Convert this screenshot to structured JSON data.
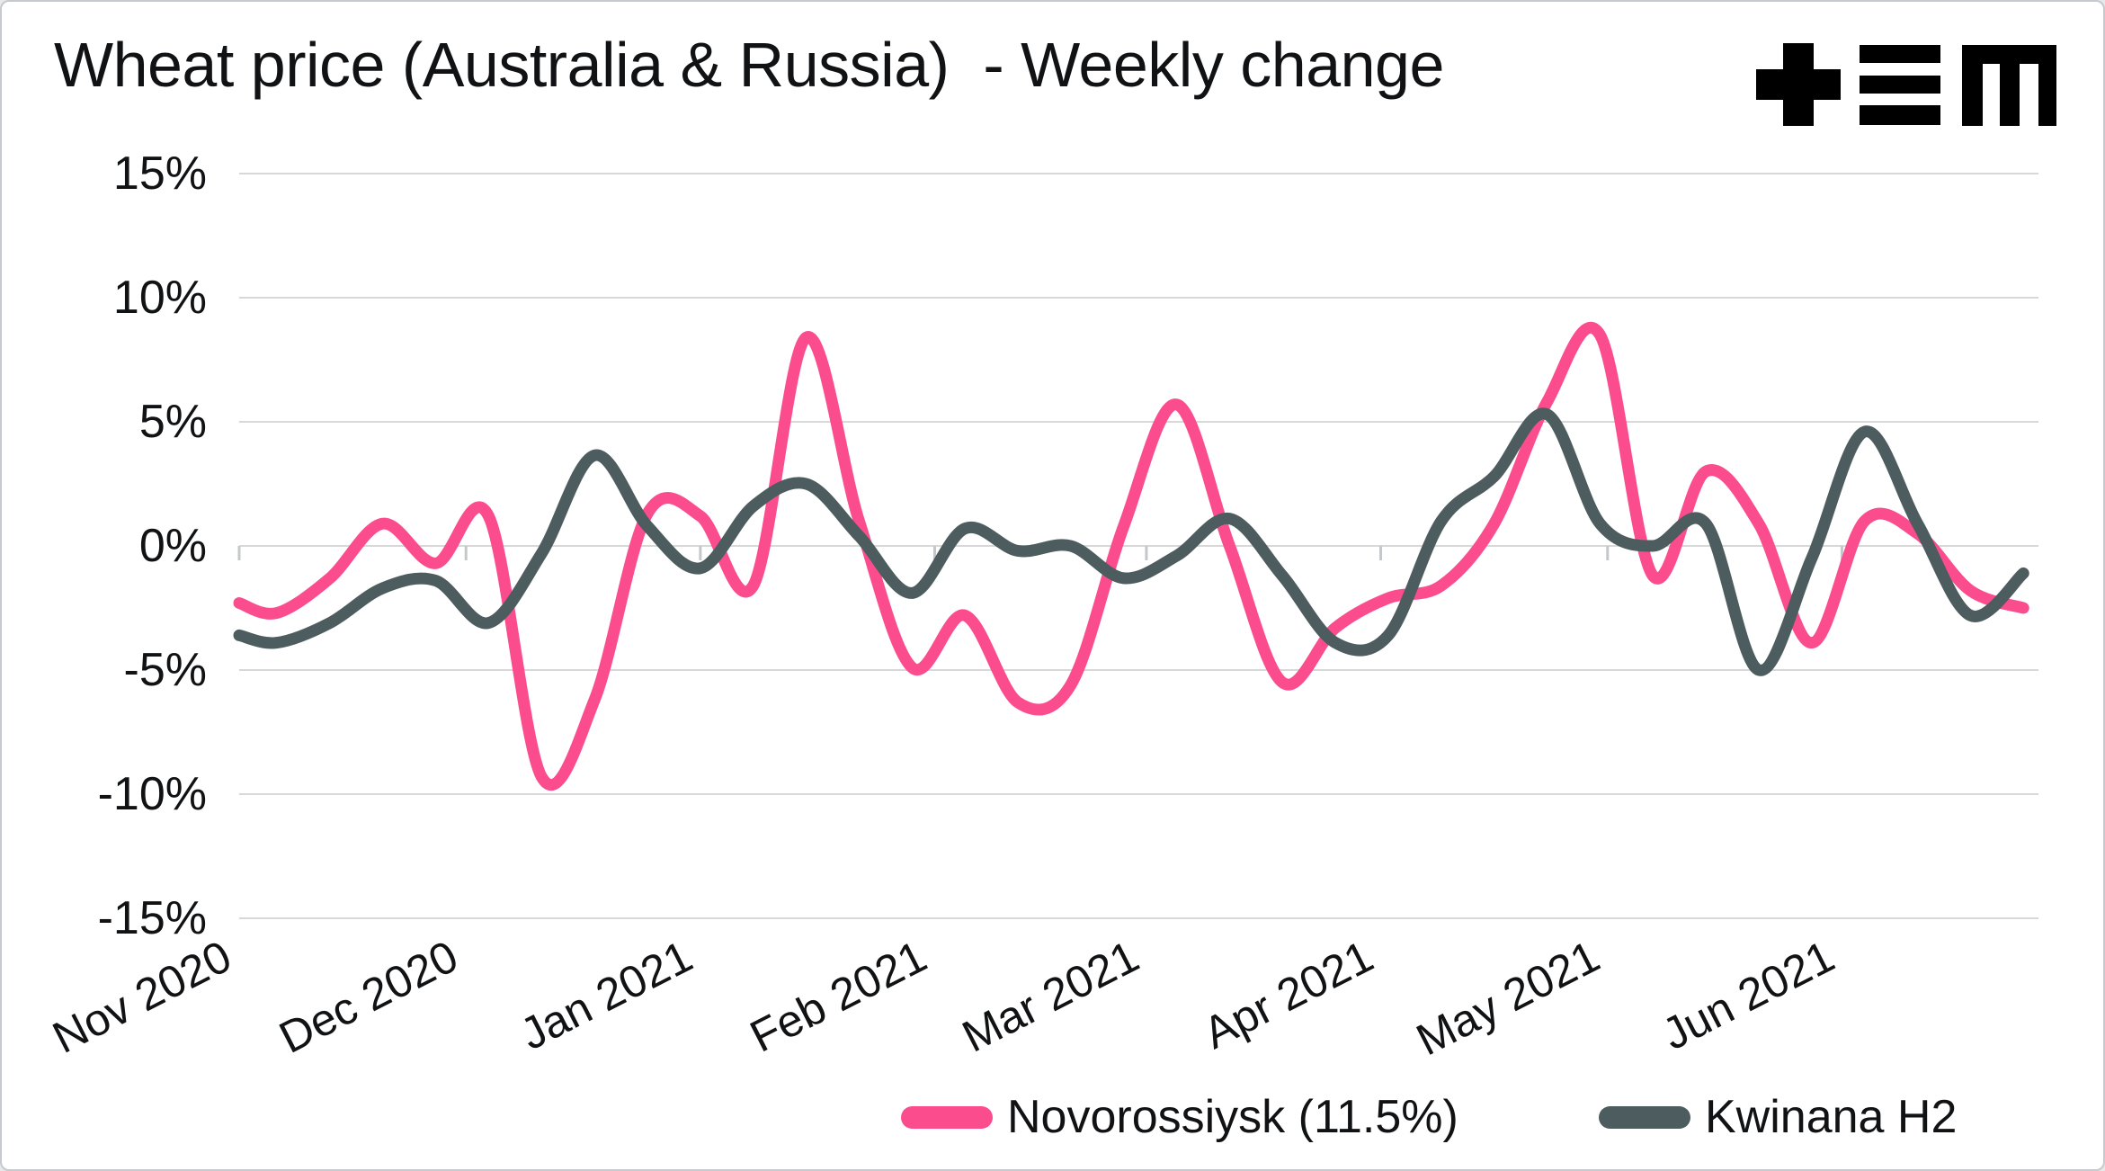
{
  "title": "Wheat price (Australia & Russia)  - Weekly change",
  "logo": {
    "name": "tem-logo",
    "color": "#1a1a1a"
  },
  "colors": {
    "novorossiysk": "#fb4d8e",
    "kwinana": "#4d5c5e",
    "grid": "#d8d8d8",
    "tick": "#c4c8ca",
    "text": "#111214",
    "background": "#ffffff"
  },
  "y_axis": {
    "tick_labels": [
      "15%",
      "10%",
      "5%",
      "0%",
      "-5%",
      "-10%",
      "-15%"
    ],
    "tick_values": [
      15,
      10,
      5,
      0,
      -5,
      -10,
      -15
    ]
  },
  "x_axis": {
    "months": [
      {
        "label": "Nov 2020",
        "date": "2020-11-01"
      },
      {
        "label": "Dec 2020",
        "date": "2020-12-01"
      },
      {
        "label": "Jan 2021",
        "date": "2021-01-01"
      },
      {
        "label": "Feb 2021",
        "date": "2021-02-01"
      },
      {
        "label": "Mar 2021",
        "date": "2021-03-01"
      },
      {
        "label": "Apr 2021",
        "date": "2021-04-01"
      },
      {
        "label": "May 2021",
        "date": "2021-05-01"
      },
      {
        "label": "Jun 2021",
        "date": "2021-06-01"
      }
    ]
  },
  "legend": [
    {
      "label": "Novorossiysk (11.5%)",
      "series": "novorossiysk"
    },
    {
      "label": "Kwinana H2",
      "series": "kwinana"
    }
  ],
  "chart_data": {
    "type": "line",
    "x_unit": "weekly",
    "x_range": [
      "2020-11-01",
      "2021-06-27"
    ],
    "ylim": [
      -15,
      15
    ],
    "yticks": [
      15,
      10,
      5,
      0,
      -5,
      -10,
      -15
    ],
    "grid": "horizontal",
    "legend_position": "bottom",
    "x": [
      "2020-11-01",
      "2020-11-06",
      "2020-11-13",
      "2020-11-20",
      "2020-11-27",
      "2020-12-04",
      "2020-12-11",
      "2020-12-18",
      "2020-12-25",
      "2021-01-01",
      "2021-01-08",
      "2021-01-15",
      "2021-01-22",
      "2021-01-29",
      "2021-02-05",
      "2021-02-12",
      "2021-02-19",
      "2021-02-26",
      "2021-03-05",
      "2021-03-12",
      "2021-03-19",
      "2021-03-26",
      "2021-04-02",
      "2021-04-09",
      "2021-04-16",
      "2021-04-23",
      "2021-04-30",
      "2021-05-07",
      "2021-05-14",
      "2021-05-21",
      "2021-05-28",
      "2021-06-04",
      "2021-06-11",
      "2021-06-18",
      "2021-06-25"
    ],
    "series": [
      {
        "name": "Novorossiysk (11.5%)",
        "key": "novorossiysk",
        "color": "#fb4d8e",
        "values": [
          -2.3,
          -2.7,
          -1.3,
          0.9,
          -0.7,
          1.2,
          -9.3,
          -6.2,
          1.3,
          1.2,
          -1.6,
          8.4,
          1.0,
          -4.9,
          -2.8,
          -6.3,
          -5.6,
          0.8,
          5.7,
          0.0,
          -5.5,
          -3.3,
          -2.1,
          -1.6,
          0.9,
          5.8,
          8.5,
          -1.2,
          3.0,
          0.9,
          -3.9,
          1.0,
          0.5,
          -1.8,
          -2.5
        ]
      },
      {
        "name": "Kwinana H2",
        "key": "kwinana",
        "color": "#4d5c5e",
        "values": [
          -3.6,
          -3.9,
          -3.1,
          -1.7,
          -1.4,
          -3.1,
          -0.3,
          3.65,
          0.8,
          -0.9,
          1.6,
          2.5,
          0.4,
          -1.9,
          0.7,
          -0.2,
          0.0,
          -1.3,
          -0.4,
          1.1,
          -1.2,
          -3.9,
          -3.6,
          1.0,
          2.8,
          5.3,
          0.9,
          0.0,
          0.9,
          -5.0,
          -0.5,
          4.6,
          0.9,
          -2.8,
          -1.1
        ]
      }
    ]
  }
}
